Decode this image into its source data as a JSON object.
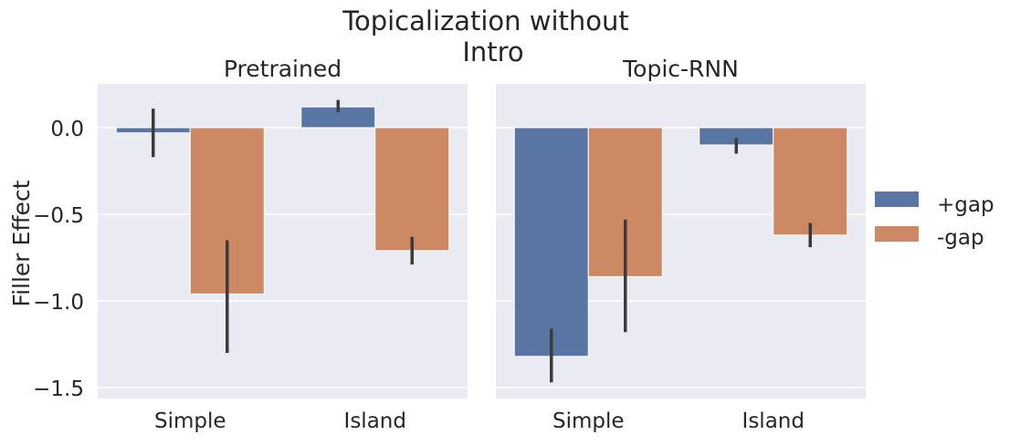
{
  "figure": {
    "title_line1": "Topicalization without",
    "title_line2": "Intro",
    "ylabel": "Filler Effect"
  },
  "legend": {
    "placement": "right",
    "items": [
      {
        "label": "+gap",
        "color": "#5875a4"
      },
      {
        "label": "-gap",
        "color": "#cc8963"
      }
    ]
  },
  "style": {
    "panel_bg": "#eaeaf2",
    "grid_color": "#ffffff",
    "errorbar_color": "#3b3b3b",
    "grid": true
  },
  "chart_data": [
    {
      "type": "bar",
      "title": "Pretrained",
      "categories": [
        "Simple",
        "Island"
      ],
      "ylim": [
        -1.55,
        0.25
      ],
      "yticks": [
        0.0,
        -0.5,
        -1.0,
        -1.5
      ],
      "ytick_labels": [
        "0.0",
        "−0.5",
        "−1.0",
        "−1.5"
      ],
      "series": [
        {
          "name": "+gap",
          "values": [
            -0.03,
            0.12
          ],
          "err_low": [
            -0.17,
            0.09
          ],
          "err_high": [
            0.11,
            0.16
          ]
        },
        {
          "name": "-gap",
          "values": [
            -0.96,
            -0.71
          ],
          "err_low": [
            -1.3,
            -0.79
          ],
          "err_high": [
            -0.65,
            -0.63
          ]
        }
      ]
    },
    {
      "type": "bar",
      "title": "Topic-RNN",
      "categories": [
        "Simple",
        "Island"
      ],
      "ylim": [
        -1.55,
        0.25
      ],
      "yticks": [
        0.0,
        -0.5,
        -1.0,
        -1.5
      ],
      "series": [
        {
          "name": "+gap",
          "values": [
            -1.32,
            -0.1
          ],
          "err_low": [
            -1.47,
            -0.15
          ],
          "err_high": [
            -1.16,
            -0.06
          ]
        },
        {
          "name": "-gap",
          "values": [
            -0.86,
            -0.62
          ],
          "err_low": [
            -1.18,
            -0.69
          ],
          "err_high": [
            -0.53,
            -0.55
          ]
        }
      ]
    }
  ]
}
